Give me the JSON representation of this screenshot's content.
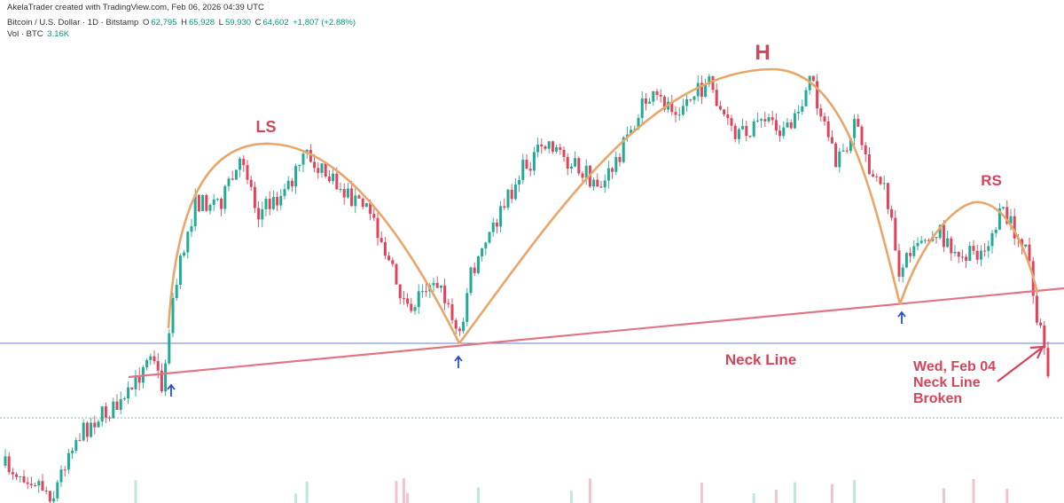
{
  "header": {
    "credit": "AkelaTrader created with TradingView.com, Feb 06, 2026 04:39 UTC",
    "symbol": "Bitcoin / U.S. Dollar · 1D · Bitstamp",
    "ohlc": [
      {
        "label": "O",
        "value": "62,795"
      },
      {
        "label": "H",
        "value": "65,928"
      },
      {
        "label": "L",
        "value": "59,930"
      },
      {
        "label": "C",
        "value": "64,602"
      }
    ],
    "change": "+1,807 (+2.88%)",
    "volume_label": "Vol · BTC",
    "volume": "3.16K"
  },
  "annotations": {
    "left_shoulder": "LS",
    "head": "H",
    "right_shoulder": "RS",
    "neck_line": "Neck Line",
    "break_note": [
      "Wed, Feb 04",
      "Neck Line",
      "Broken"
    ]
  }
}
